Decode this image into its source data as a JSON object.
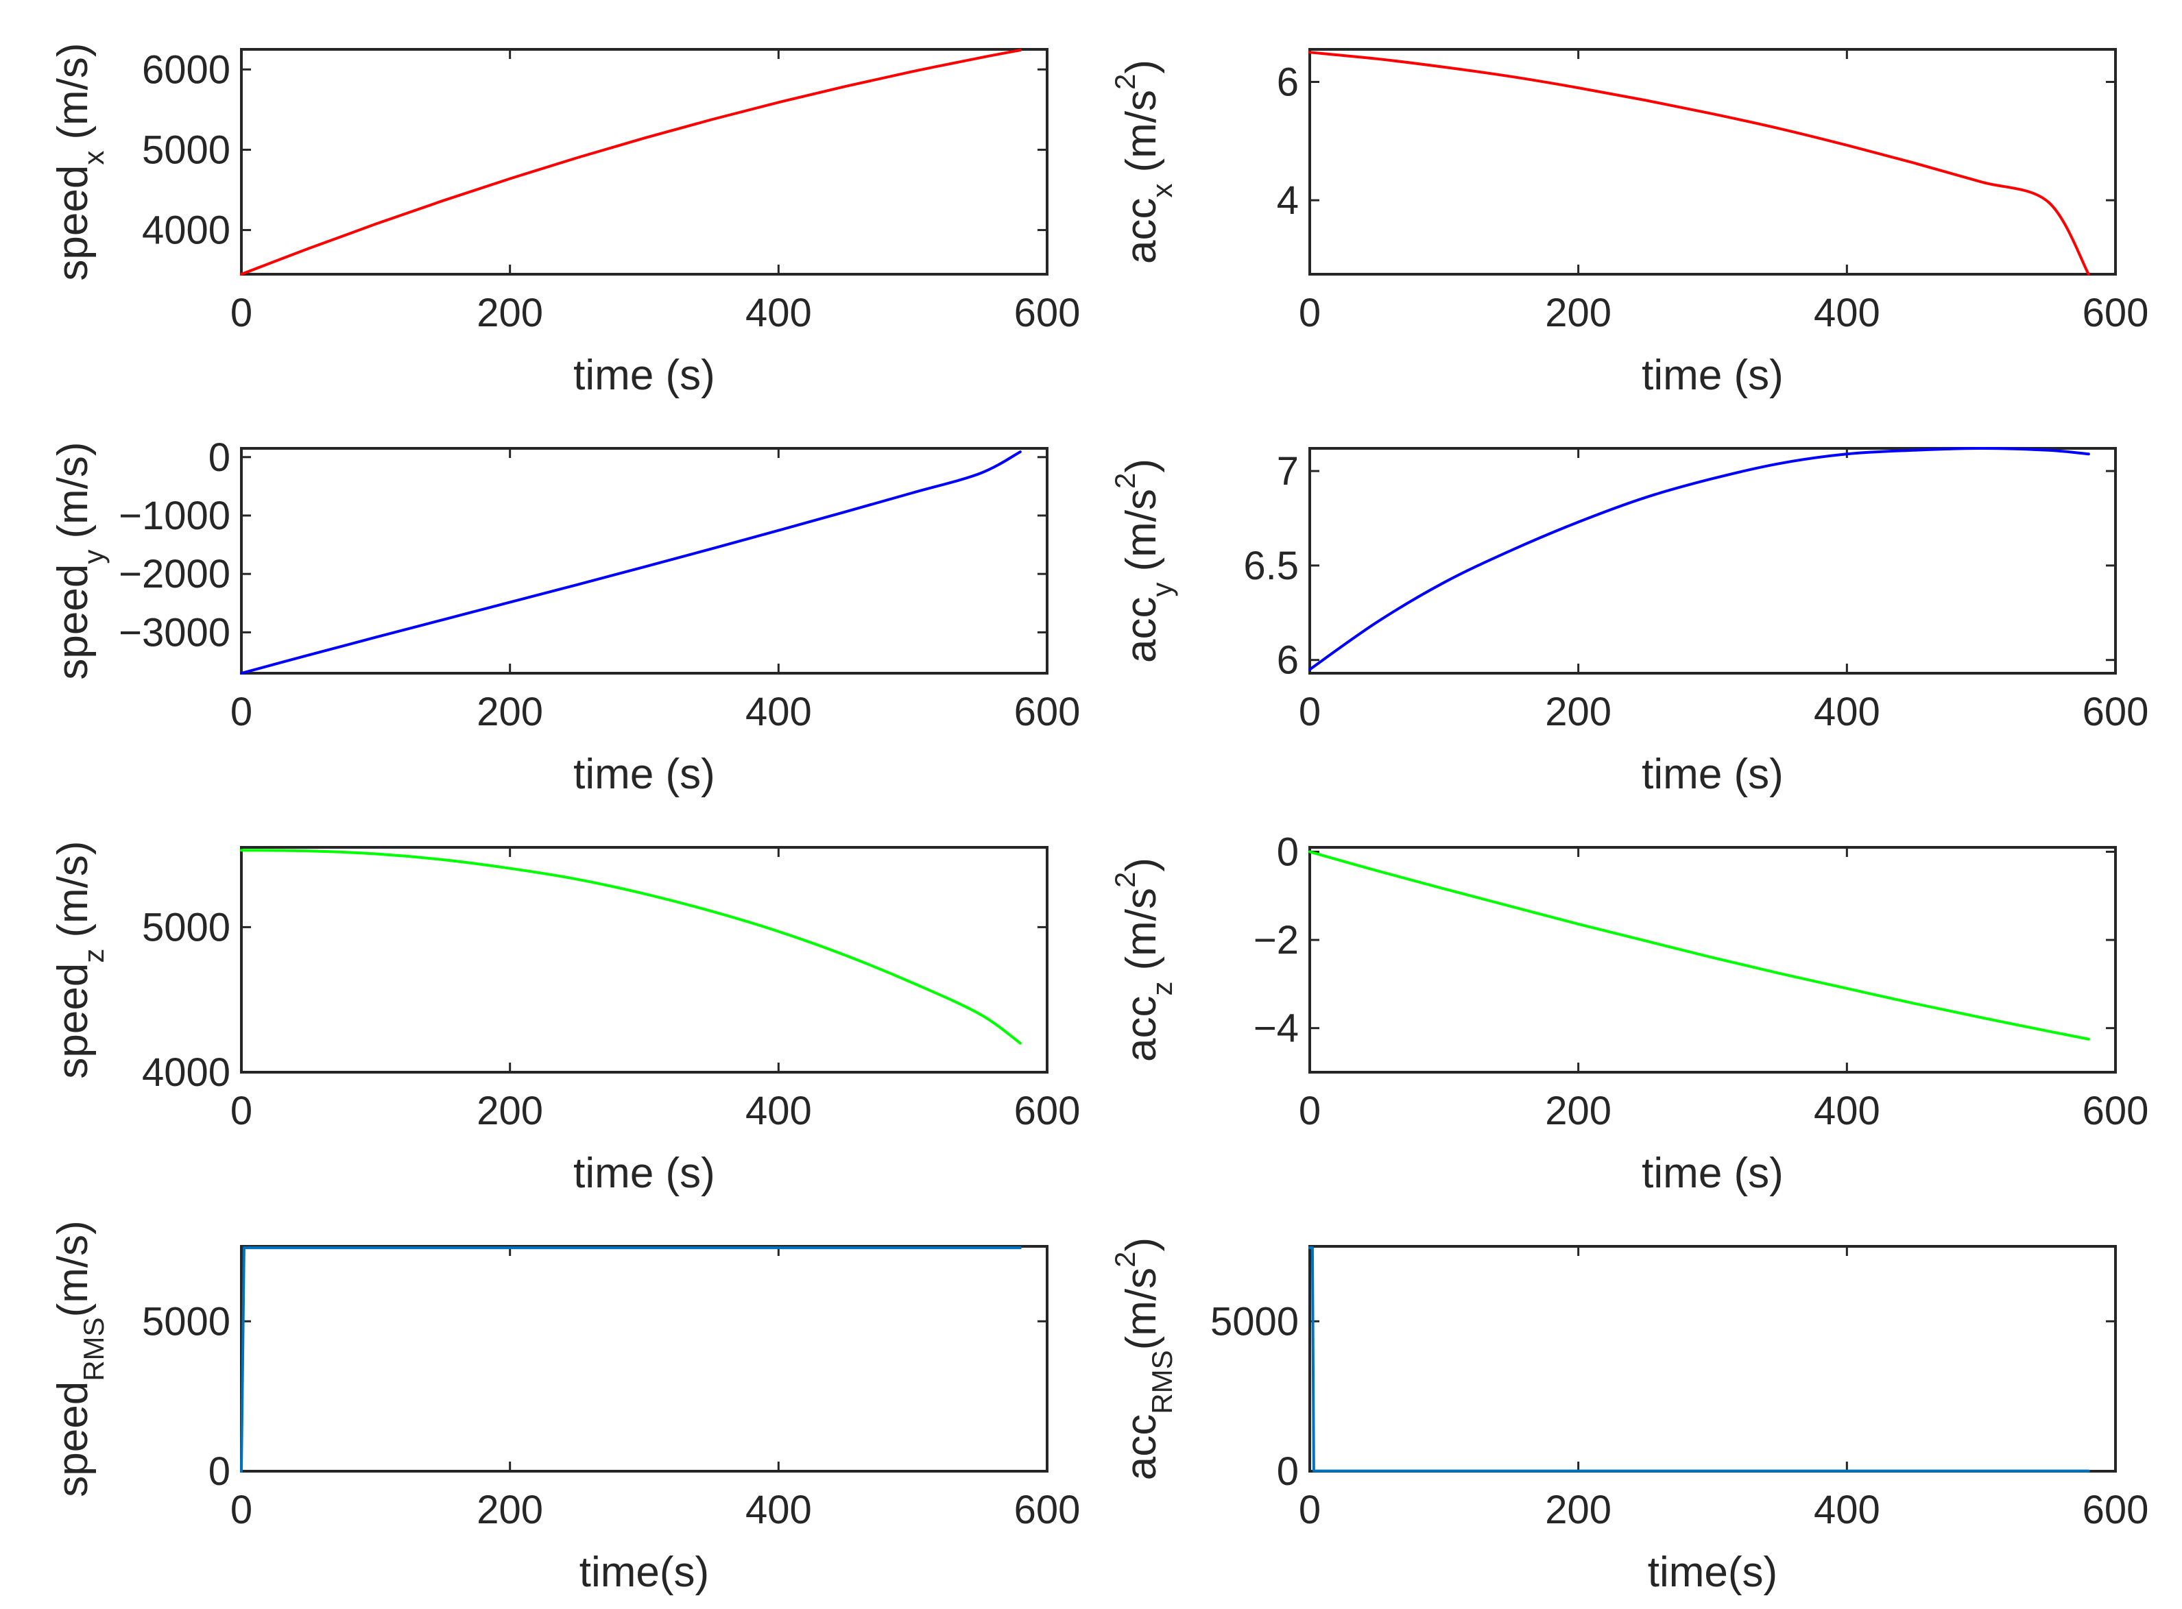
{
  "chart_data": [
    {
      "id": "speed-x",
      "type": "line",
      "ylabel": {
        "main": "speed",
        "sub": "x",
        "sup": "",
        "unit_pre": "(m/s",
        "unit_post": ")"
      },
      "xlabel": "time (s)",
      "xlim": [
        0,
        600
      ],
      "ylim": [
        3450,
        6250
      ],
      "xticks": [
        0,
        200,
        400,
        600
      ],
      "yticks": [
        4000,
        5000,
        6000
      ],
      "color": "#ff0000",
      "series": [
        {
          "name": "speed_x",
          "x": [
            0,
            50,
            100,
            150,
            200,
            250,
            300,
            350,
            400,
            450,
            500,
            550,
            580
          ],
          "y": [
            3450,
            3770,
            4075,
            4365,
            4640,
            4900,
            5145,
            5375,
            5590,
            5790,
            5975,
            6145,
            6240
          ]
        }
      ]
    },
    {
      "id": "acc-x",
      "type": "line",
      "ylabel": {
        "main": "acc",
        "sub": "x",
        "sup": "2",
        "unit_pre": "(m/s",
        "unit_post": ")"
      },
      "xlabel": "time (s)",
      "xlim": [
        0,
        600
      ],
      "ylim": [
        2.75,
        6.55
      ],
      "xticks": [
        0,
        200,
        400,
        600
      ],
      "yticks": [
        4,
        6
      ],
      "color": "#ff0000",
      "series": [
        {
          "name": "acc_x",
          "x": [
            0,
            50,
            100,
            150,
            200,
            250,
            300,
            350,
            400,
            450,
            500,
            550,
            580
          ],
          "y": [
            6.5,
            6.39,
            6.25,
            6.09,
            5.9,
            5.69,
            5.46,
            5.21,
            4.93,
            4.63,
            4.31,
            3.97,
            2.75
          ]
        }
      ]
    },
    {
      "id": "speed-y",
      "type": "line",
      "ylabel": {
        "main": "speed",
        "sub": "y",
        "sup": "",
        "unit_pre": "(m/s",
        "unit_post": ")"
      },
      "xlabel": "time (s)",
      "xlim": [
        0,
        600
      ],
      "ylim": [
        -3700,
        150
      ],
      "xticks": [
        0,
        200,
        400,
        600
      ],
      "yticks": [
        -3000,
        -2000,
        -1000,
        0
      ],
      "color": "#0000ff",
      "series": [
        {
          "name": "speed_y",
          "x": [
            0,
            50,
            100,
            150,
            200,
            250,
            300,
            350,
            400,
            450,
            500,
            550,
            580
          ],
          "y": [
            -3700,
            -3390,
            -3085,
            -2785,
            -2485,
            -2185,
            -1880,
            -1570,
            -1255,
            -935,
            -610,
            -280,
            90
          ]
        }
      ]
    },
    {
      "id": "acc-y",
      "type": "line",
      "ylabel": {
        "main": "acc",
        "sub": "y",
        "sup": "2",
        "unit_pre": "(m/s",
        "unit_post": ")"
      },
      "xlabel": "time (s)",
      "xlim": [
        0,
        600
      ],
      "ylim": [
        5.93,
        7.12
      ],
      "xticks": [
        0,
        200,
        400,
        600
      ],
      "yticks": [
        6,
        6.5,
        7
      ],
      "color": "#0000ff",
      "series": [
        {
          "name": "acc_y",
          "x": [
            0,
            50,
            100,
            150,
            200,
            250,
            300,
            350,
            400,
            450,
            500,
            550,
            580
          ],
          "y": [
            5.95,
            6.2,
            6.41,
            6.58,
            6.73,
            6.86,
            6.96,
            7.04,
            7.09,
            7.11,
            7.12,
            7.11,
            7.09
          ]
        }
      ]
    },
    {
      "id": "speed-z",
      "type": "line",
      "ylabel": {
        "main": "speed",
        "sub": "z",
        "sup": "",
        "unit_pre": "(m/s",
        "unit_post": ")"
      },
      "xlabel": "time (s)",
      "xlim": [
        0,
        600
      ],
      "ylim": [
        4000,
        5550
      ],
      "xticks": [
        0,
        200,
        400,
        600
      ],
      "yticks": [
        4000,
        5000
      ],
      "color": "#00ff00",
      "series": [
        {
          "name": "speed_z",
          "x": [
            0,
            50,
            100,
            150,
            200,
            250,
            300,
            350,
            400,
            450,
            500,
            550,
            580
          ],
          "y": [
            5530,
            5525,
            5505,
            5465,
            5405,
            5330,
            5230,
            5110,
            4970,
            4805,
            4615,
            4400,
            4200
          ]
        }
      ]
    },
    {
      "id": "acc-z",
      "type": "line",
      "ylabel": {
        "main": "acc",
        "sub": "z",
        "sup": "2",
        "unit_pre": "(m/s",
        "unit_post": ")"
      },
      "xlabel": "time (s)",
      "xlim": [
        0,
        600
      ],
      "ylim": [
        -5,
        0.1
      ],
      "xticks": [
        0,
        200,
        400,
        600
      ],
      "yticks": [
        -4,
        -2,
        0
      ],
      "color": "#00ff00",
      "series": [
        {
          "name": "acc_z",
          "x": [
            0,
            50,
            100,
            150,
            200,
            250,
            300,
            350,
            400,
            450,
            500,
            550,
            580
          ],
          "y": [
            0,
            -0.43,
            -0.84,
            -1.24,
            -1.64,
            -2.02,
            -2.4,
            -2.76,
            -3.1,
            -3.44,
            -3.76,
            -4.07,
            -4.25
          ]
        }
      ]
    },
    {
      "id": "speed-rms",
      "type": "line",
      "ylabel": {
        "main": "speed",
        "sub": "RMS",
        "sup": "",
        "unit_pre": "(m/s",
        "unit_post": ")"
      },
      "xlabel": "time(s)",
      "xlim": [
        0,
        600
      ],
      "ylim": [
        0,
        7500
      ],
      "xticks": [
        0,
        200,
        400,
        600
      ],
      "yticks": [
        0,
        5000
      ],
      "color": "#0072bd",
      "series": [
        {
          "name": "speed_RMS",
          "x": [
            0,
            2,
            580
          ],
          "y": [
            0,
            7450,
            7450
          ]
        }
      ]
    },
    {
      "id": "acc-rms",
      "type": "line",
      "ylabel": {
        "main": "acc",
        "sub": "RMS",
        "sup": "2",
        "unit_pre": "(m/s",
        "unit_post": ")"
      },
      "xlabel": "time(s)",
      "xlim": [
        0,
        600
      ],
      "ylim": [
        0,
        7500
      ],
      "xticks": [
        0,
        200,
        400,
        600
      ],
      "yticks": [
        0,
        5000
      ],
      "color": "#0072bd",
      "series": [
        {
          "name": "acc_RMS",
          "x": [
            0,
            2,
            3,
            580
          ],
          "y": [
            7450,
            7450,
            9,
            9
          ]
        }
      ]
    }
  ]
}
